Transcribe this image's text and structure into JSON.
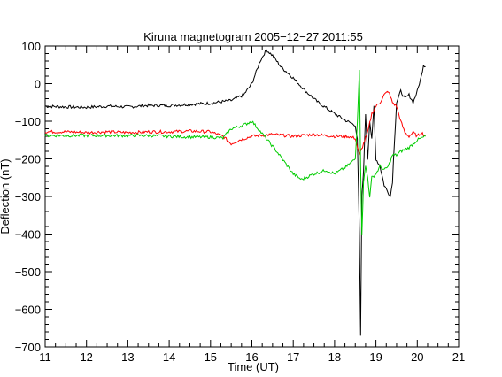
{
  "chart_data": {
    "type": "line",
    "title": "Kiruna magnetogram 2005−12−27 2011:55",
    "xlabel": "Time (UT)",
    "ylabel": "Deflection (nT)",
    "xlim": [
      11,
      21
    ],
    "ylim": [
      -700,
      100
    ],
    "x_ticks": [
      11,
      12,
      13,
      14,
      15,
      16,
      17,
      18,
      19,
      20,
      21
    ],
    "y_ticks": [
      100,
      0,
      -100,
      -200,
      -300,
      -400,
      -500,
      -600,
      -700
    ],
    "x_tick_labels": [
      "11",
      "12",
      "13",
      "14",
      "15",
      "16",
      "17",
      "18",
      "19",
      "20",
      "21"
    ],
    "y_tick_labels": [
      "100",
      "0",
      "−100",
      "−200",
      "−300",
      "−400",
      "−500",
      "−600",
      "−700"
    ],
    "grid": false,
    "series": [
      {
        "color": "#000000",
        "points": [
          [
            11,
            -60
          ],
          [
            11.5,
            -62
          ],
          [
            12,
            -63
          ],
          [
            12.5,
            -60
          ],
          [
            13,
            -62
          ],
          [
            13.5,
            -58
          ],
          [
            14,
            -58
          ],
          [
            14.5,
            -55
          ],
          [
            15,
            -52
          ],
          [
            15.5,
            -45
          ],
          [
            15.8,
            -30
          ],
          [
            16.0,
            0
          ],
          [
            16.2,
            60
          ],
          [
            16.35,
            90
          ],
          [
            16.5,
            75
          ],
          [
            16.7,
            45
          ],
          [
            17.0,
            15
          ],
          [
            17.3,
            -20
          ],
          [
            17.6,
            -50
          ],
          [
            18.0,
            -80
          ],
          [
            18.3,
            -100
          ],
          [
            18.5,
            -110
          ],
          [
            18.55,
            -150
          ],
          [
            18.6,
            -400
          ],
          [
            18.63,
            -670
          ],
          [
            18.66,
            -300
          ],
          [
            18.7,
            -230
          ],
          [
            18.75,
            -80
          ],
          [
            18.8,
            -200
          ],
          [
            18.85,
            -100
          ],
          [
            18.9,
            -150
          ],
          [
            18.95,
            -60
          ],
          [
            19.0,
            -200
          ],
          [
            19.1,
            -220
          ],
          [
            19.2,
            -270
          ],
          [
            19.3,
            -290
          ],
          [
            19.35,
            -300
          ],
          [
            19.4,
            -260
          ],
          [
            19.45,
            -150
          ],
          [
            19.5,
            -50
          ],
          [
            19.6,
            -20
          ],
          [
            19.7,
            -40
          ],
          [
            19.8,
            -30
          ],
          [
            19.9,
            -50
          ],
          [
            20.0,
            -20
          ],
          [
            20.1,
            20
          ],
          [
            20.15,
            50
          ],
          [
            20.2,
            45
          ]
        ]
      },
      {
        "color": "#ff0000",
        "points": [
          [
            11,
            -128
          ],
          [
            11.5,
            -128
          ],
          [
            12,
            -130
          ],
          [
            12.5,
            -128
          ],
          [
            13,
            -130
          ],
          [
            13.5,
            -128
          ],
          [
            14,
            -128
          ],
          [
            14.5,
            -126
          ],
          [
            15,
            -128
          ],
          [
            15.3,
            -140
          ],
          [
            15.5,
            -160
          ],
          [
            15.7,
            -150
          ],
          [
            16.0,
            -140
          ],
          [
            16.5,
            -135
          ],
          [
            17.0,
            -140
          ],
          [
            17.5,
            -135
          ],
          [
            18.0,
            -140
          ],
          [
            18.3,
            -140
          ],
          [
            18.5,
            -145
          ],
          [
            18.6,
            -190
          ],
          [
            18.7,
            -160
          ],
          [
            18.8,
            -130
          ],
          [
            18.9,
            -80
          ],
          [
            19.0,
            -60
          ],
          [
            19.1,
            -50
          ],
          [
            19.2,
            -30
          ],
          [
            19.3,
            -20
          ],
          [
            19.4,
            -50
          ],
          [
            19.5,
            -60
          ],
          [
            19.6,
            -100
          ],
          [
            19.7,
            -130
          ],
          [
            19.8,
            -140
          ],
          [
            19.9,
            -130
          ],
          [
            20.0,
            -140
          ],
          [
            20.1,
            -130
          ],
          [
            20.2,
            -140
          ]
        ]
      },
      {
        "color": "#00cc00",
        "points": [
          [
            11,
            -138
          ],
          [
            11.5,
            -138
          ],
          [
            12,
            -138
          ],
          [
            12.5,
            -138
          ],
          [
            13,
            -138
          ],
          [
            13.5,
            -138
          ],
          [
            14,
            -140
          ],
          [
            14.5,
            -142
          ],
          [
            15,
            -142
          ],
          [
            15.3,
            -145
          ],
          [
            15.5,
            -120
          ],
          [
            15.8,
            -110
          ],
          [
            16.0,
            -100
          ],
          [
            16.3,
            -140
          ],
          [
            16.6,
            -180
          ],
          [
            17.0,
            -240
          ],
          [
            17.2,
            -255
          ],
          [
            17.5,
            -240
          ],
          [
            17.8,
            -230
          ],
          [
            18.0,
            -240
          ],
          [
            18.3,
            -220
          ],
          [
            18.5,
            -200
          ],
          [
            18.55,
            -100
          ],
          [
            18.6,
            40
          ],
          [
            18.63,
            -220
          ],
          [
            18.66,
            -400
          ],
          [
            18.7,
            -260
          ],
          [
            18.75,
            -220
          ],
          [
            18.8,
            -250
          ],
          [
            18.85,
            -300
          ],
          [
            18.9,
            -250
          ],
          [
            19.0,
            -240
          ],
          [
            19.1,
            -220
          ],
          [
            19.2,
            -230
          ],
          [
            19.3,
            -220
          ],
          [
            19.4,
            -190
          ],
          [
            19.5,
            -190
          ],
          [
            19.6,
            -180
          ],
          [
            19.8,
            -170
          ],
          [
            20.0,
            -150
          ],
          [
            20.2,
            -140
          ]
        ]
      }
    ]
  }
}
